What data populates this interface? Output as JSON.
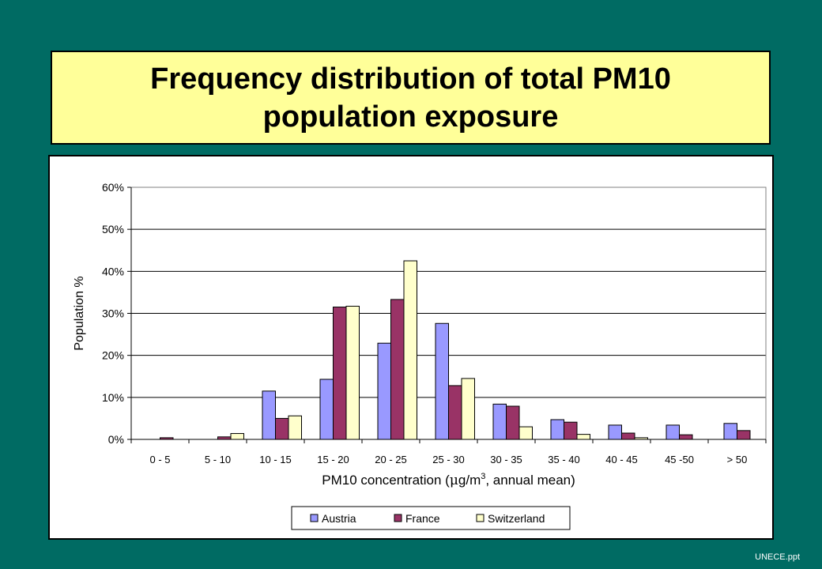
{
  "title": {
    "line1": "Frequency distribution of total PM10",
    "line2": "population exposure"
  },
  "footer": "UNECE.ppt",
  "chart_data": {
    "type": "bar",
    "xlabel_pre": "PM10 concentration (",
    "xlabel_mu": "μ",
    "xlabel_mid": "g/m",
    "xlabel_sup": "3",
    "xlabel_post": ", annual mean)",
    "ylabel": "Population %",
    "ylim": [
      0,
      60
    ],
    "yticks": [
      "0%",
      "10%",
      "20%",
      "30%",
      "40%",
      "50%",
      "60%"
    ],
    "categories": [
      "0 - 5",
      "5 - 10",
      "10 - 15",
      "15 - 20",
      "20 - 25",
      "25 - 30",
      "30 - 35",
      "35 - 40",
      "40 - 45",
      "45 -50",
      "> 50"
    ],
    "series": [
      {
        "name": "Austria",
        "color": "#9999ff",
        "values": [
          0,
          0,
          11.5,
          14.3,
          22.9,
          27.6,
          8.4,
          4.7,
          3.4,
          3.4,
          3.8
        ]
      },
      {
        "name": "France",
        "color": "#993366",
        "values": [
          0.4,
          0.6,
          5.0,
          31.5,
          33.3,
          12.8,
          7.9,
          4.1,
          1.5,
          1.1,
          2.1
        ]
      },
      {
        "name": "Switzerland",
        "color": "#ffffcc",
        "values": [
          0,
          1.4,
          5.6,
          31.7,
          42.5,
          14.5,
          3.0,
          1.2,
          0.4,
          0,
          0
        ]
      }
    ],
    "grid": true,
    "legend_position": "bottom"
  }
}
